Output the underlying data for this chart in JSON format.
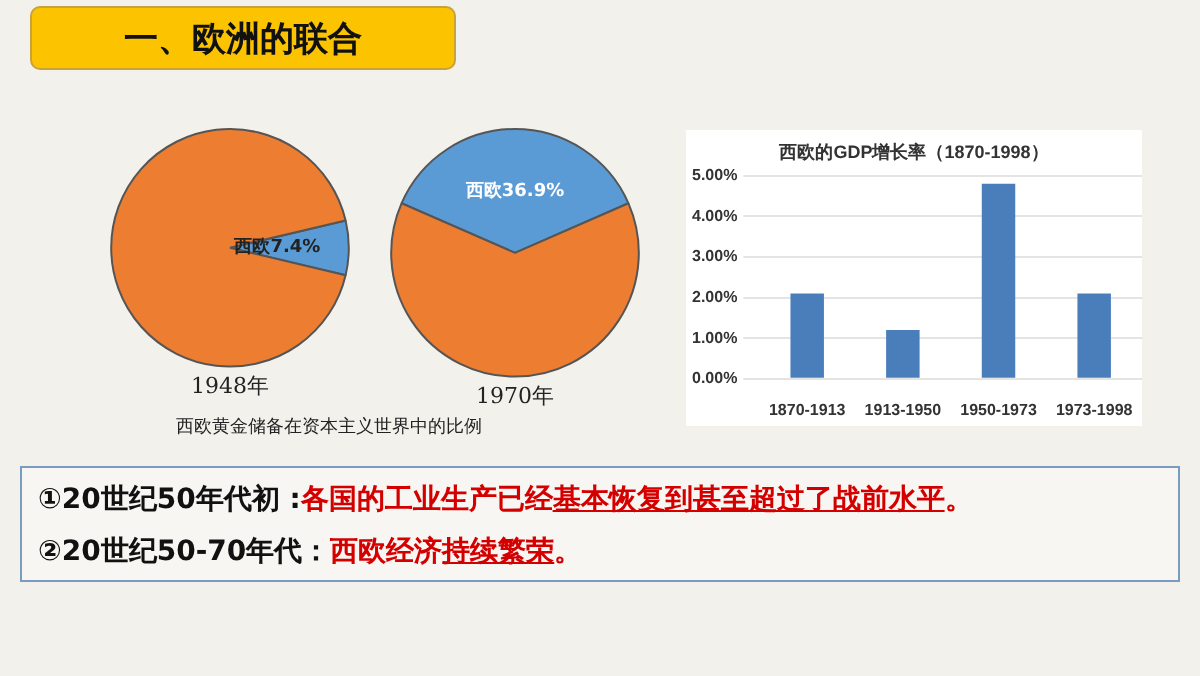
{
  "chart_data": [
    {
      "type": "pie",
      "title": "1948年",
      "categories": [
        "西欧",
        null
      ],
      "values": [
        7.4,
        92.6
      ],
      "colors": [
        "#5b9bd5",
        "#ed7d31"
      ],
      "value_labels": [
        "7.4%",
        null
      ],
      "legend": false,
      "annotations": [
        "西欧黄金储备在资本主义世界中的比例"
      ]
    },
    {
      "type": "pie",
      "title": "1970年",
      "categories": [
        "西欧",
        null
      ],
      "values": [
        36.9,
        63.1
      ],
      "colors": [
        "#5b9bd5",
        "#ed7d31"
      ],
      "value_labels": [
        "36.9%",
        null
      ],
      "legend": false
    },
    {
      "type": "bar",
      "title": "西欧的GDP增长率（1870-1998）",
      "categories": [
        "1870-1913",
        "1913-1950",
        "1950-1973",
        "1973-1998"
      ],
      "values": [
        2.1,
        1.2,
        4.8,
        2.1
      ],
      "color": "#4a7ebb",
      "ylim": [
        0,
        5
      ],
      "yticks": [
        {
          "value": 0,
          "label": "0.00%"
        },
        {
          "value": 1,
          "label": "1.00%"
        },
        {
          "value": 2,
          "label": "2.00%"
        },
        {
          "value": 3,
          "label": "3.00%"
        },
        {
          "value": 4,
          "label": "4.00%"
        },
        {
          "value": 5,
          "label": "5.00%"
        }
      ],
      "grid": "y",
      "legend": false
    },
    {
      "type": "other",
      "title": "一、欧洲的联合",
      "annotations": [
        "①20世纪50年代初 :",
        "各国的工业生产已经",
        "基本恢复到甚至超过了战前水平",
        "。",
        "②20世纪50-70年代：",
        "西欧经济",
        "持续繁荣",
        "。"
      ]
    }
  ]
}
